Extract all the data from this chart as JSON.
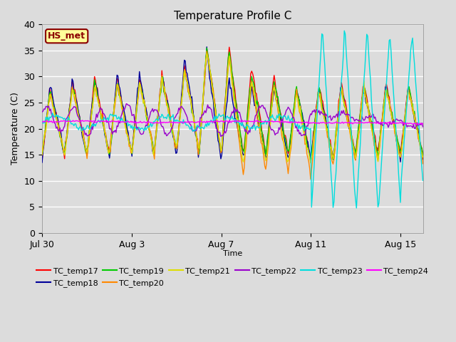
{
  "title": "Temperature Profile C",
  "xlabel": "Time",
  "ylabel": "Temperature (C)",
  "ylim": [
    0,
    40
  ],
  "annotation": "HS_met",
  "annotation_color": "#8B0000",
  "annotation_bg": "#FFFF99",
  "annotation_border": "#8B0000",
  "bg_color": "#DCDCDC",
  "series": [
    {
      "name": "TC_temp17",
      "color": "#FF0000"
    },
    {
      "name": "TC_temp18",
      "color": "#000099"
    },
    {
      "name": "TC_temp19",
      "color": "#00CC00"
    },
    {
      "name": "TC_temp20",
      "color": "#FF8800"
    },
    {
      "name": "TC_temp21",
      "color": "#DDDD00"
    },
    {
      "name": "TC_temp22",
      "color": "#9900CC"
    },
    {
      "name": "TC_temp23",
      "color": "#00DDDD"
    },
    {
      "name": "TC_temp24",
      "color": "#FF00FF"
    }
  ],
  "xtick_labels": [
    "Jul 30",
    "Aug 3",
    "Aug 7",
    "Aug 11",
    "Aug 15"
  ],
  "xtick_positions": [
    0,
    4,
    8,
    12,
    16
  ],
  "ytick_labels": [
    "0",
    "5",
    "10",
    "15",
    "20",
    "25",
    "30",
    "35",
    "40"
  ],
  "ytick_positions": [
    0,
    5,
    10,
    15,
    20,
    25,
    30,
    35,
    40
  ],
  "figsize": [
    6.4,
    4.8
  ],
  "dpi": 100
}
